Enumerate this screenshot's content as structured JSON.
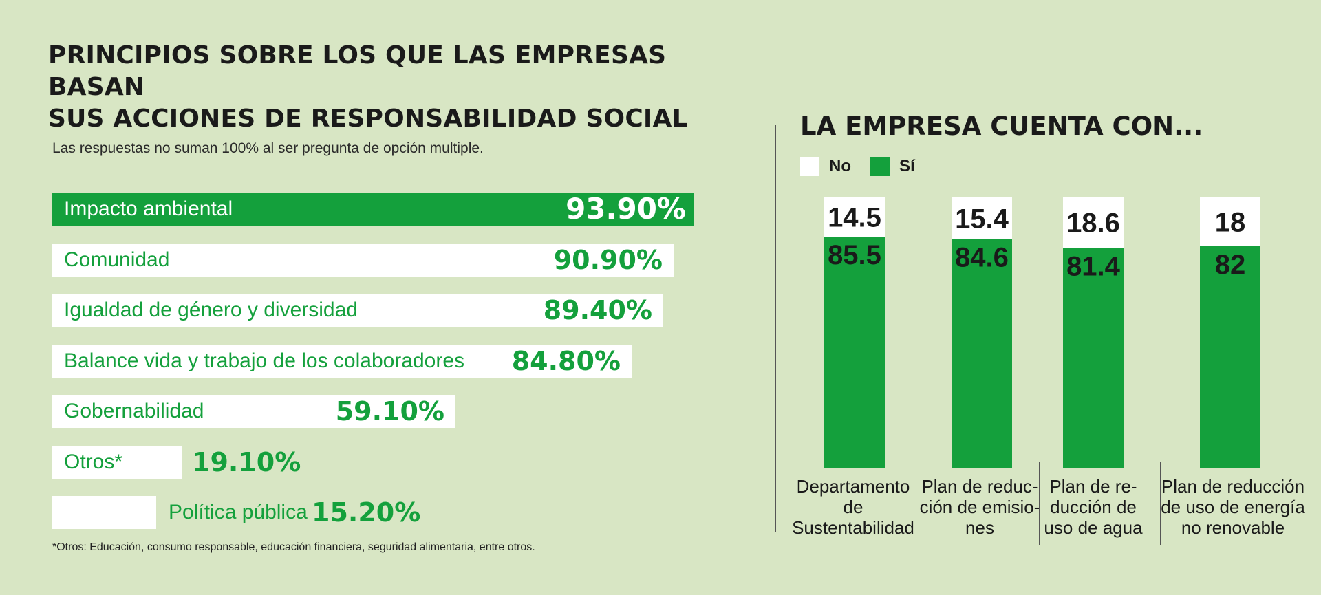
{
  "left": {
    "title_line1": "PRINCIPIOS SOBRE LOS QUE LAS EMPRESAS BASAN",
    "title_line2": "SUS ACCIONES DE RESPONSABILIDAD SOCIAL",
    "subtitle": "Las respuestas no suman 100% al ser pregunta de opción multiple.",
    "footnote": "*Otros: Educación, consumo responsable, educación financiera, seguridad alimentaria, entre otros."
  },
  "right": {
    "title": "LA EMPRESA CUENTA CON...",
    "legend": [
      "No",
      "Sí"
    ]
  },
  "colors": {
    "green": "#14a03c",
    "white": "#ffffff",
    "background": "#d8e6c4"
  },
  "chart_data": [
    {
      "type": "bar",
      "orientation": "horizontal",
      "categories": [
        "Impacto ambiental",
        "Comunidad",
        "Igualdad de género y diversidad",
        "Balance vida y trabajo de los colaboradores",
        "Gobernabilidad",
        "Otros*",
        "Política pública"
      ],
      "values": [
        93.9,
        90.9,
        89.4,
        84.8,
        59.1,
        19.1,
        15.2
      ],
      "value_labels": [
        "93.90%",
        "90.90%",
        "89.40%",
        "84.80%",
        "59.10%",
        "19.10%",
        "15.20%"
      ],
      "highlight_index": 0
    },
    {
      "type": "bar",
      "stacked": true,
      "orientation": "vertical",
      "categories": [
        "Departamento de\nSustentabilidad",
        "Plan de reduc-\nción de emisio-\nnes",
        "Plan de re-\nducción de\nuso de agua",
        "Plan de reducción\nde uso de energía\nno renovable"
      ],
      "series": [
        {
          "name": "No",
          "values": [
            14.5,
            15.4,
            18.6,
            18
          ],
          "labels": [
            "14.5",
            "15.4",
            "18.6",
            "18"
          ]
        },
        {
          "name": "Sí",
          "values": [
            85.5,
            84.6,
            81.4,
            82
          ],
          "labels": [
            "85.5",
            "84.6",
            "81.4",
            "82"
          ]
        }
      ],
      "ylim": [
        0,
        100
      ],
      "legend_position": "top-left"
    }
  ]
}
